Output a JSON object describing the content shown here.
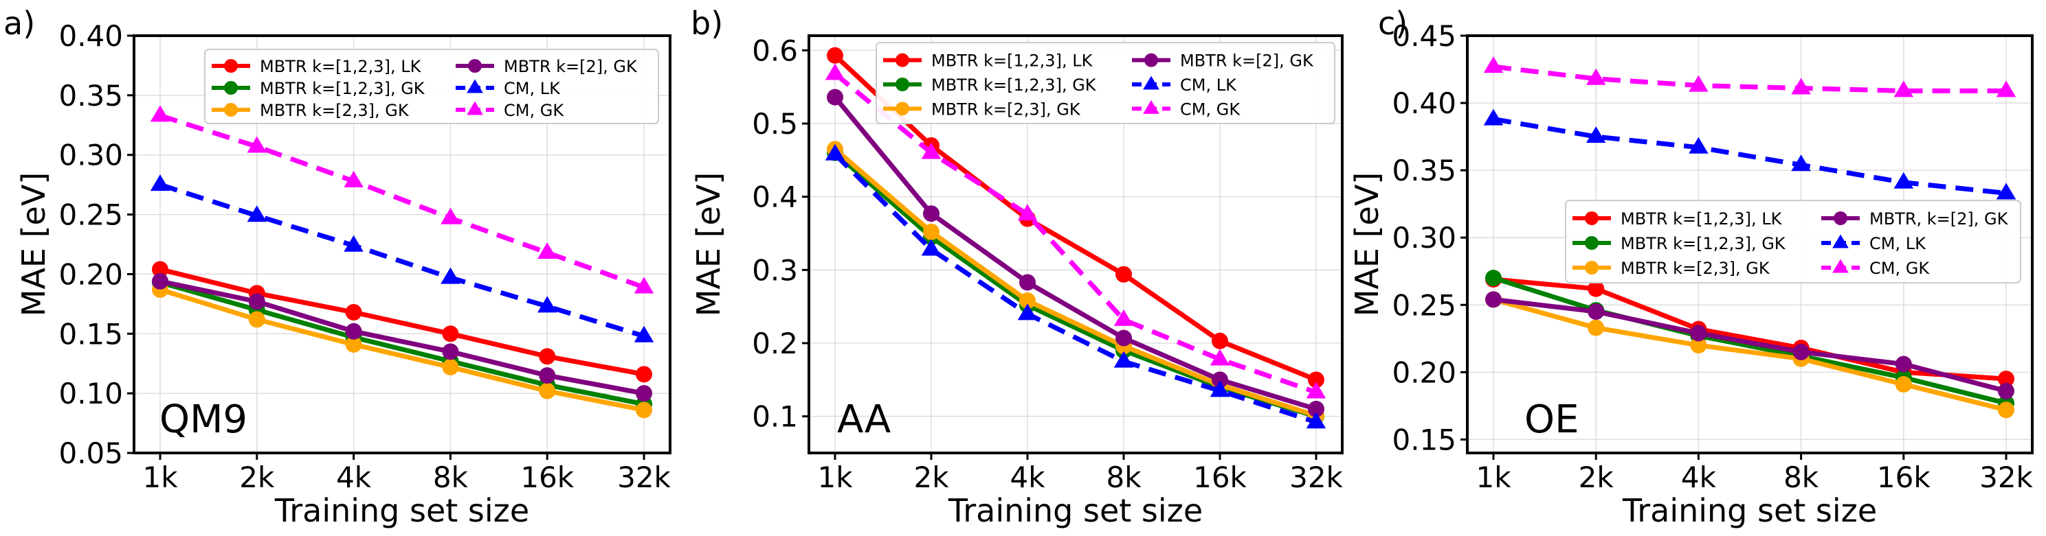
{
  "chart_data": [
    {
      "type": "line",
      "panel_label": "a)",
      "dataset_label": "QM9",
      "xlabel": "Training set size",
      "ylabel": "MAE [eV]",
      "categories": [
        "1k",
        "2k",
        "4k",
        "8k",
        "16k",
        "32k"
      ],
      "ylim": [
        0.05,
        0.4
      ],
      "yticks": [
        "0.05",
        "0.10",
        "0.15",
        "0.20",
        "0.25",
        "0.30",
        "0.35",
        "0.40"
      ],
      "grid": true,
      "legend": "top",
      "series": [
        {
          "name": "MBTR k=[1,2,3], LK",
          "color": "#ff0000",
          "marker": "circle",
          "dash": false,
          "values": [
            0.204,
            0.184,
            0.168,
            0.15,
            0.131,
            0.116
          ]
        },
        {
          "name": "MBTR k=[1,2,3], GK",
          "color": "#008000",
          "marker": "circle",
          "dash": false,
          "values": [
            0.193,
            0.17,
            0.147,
            0.127,
            0.107,
            0.091
          ]
        },
        {
          "name": "MBTR k=[2,3], GK",
          "color": "#ffa500",
          "marker": "circle",
          "dash": false,
          "values": [
            0.187,
            0.162,
            0.141,
            0.122,
            0.102,
            0.086
          ]
        },
        {
          "name": "MBTR k=[2], GK",
          "color": "#800080",
          "marker": "circle",
          "dash": false,
          "values": [
            0.194,
            0.177,
            0.152,
            0.135,
            0.115,
            0.1
          ]
        },
        {
          "name": "CM, LK",
          "color": "#0000ff",
          "marker": "triangle",
          "dash": true,
          "values": [
            0.275,
            0.249,
            0.224,
            0.197,
            0.173,
            0.148
          ]
        },
        {
          "name": "CM, GK",
          "color": "#ff00ff",
          "marker": "triangle",
          "dash": true,
          "values": [
            0.333,
            0.307,
            0.278,
            0.247,
            0.218,
            0.189
          ]
        }
      ]
    },
    {
      "type": "line",
      "panel_label": "b)",
      "dataset_label": "AA",
      "xlabel": "Training set size",
      "ylabel": "MAE [eV]",
      "categories": [
        "1k",
        "2k",
        "4k",
        "8k",
        "16k",
        "32k"
      ],
      "ylim": [
        0.05,
        0.62
      ],
      "yticks": [
        "0.1",
        "0.2",
        "0.3",
        "0.4",
        "0.5",
        "0.6"
      ],
      "ytick_values": [
        0.1,
        0.2,
        0.3,
        0.4,
        0.5,
        0.6
      ],
      "grid": true,
      "legend": "top",
      "series": [
        {
          "name": "MBTR k=[1,2,3], LK",
          "color": "#ff0000",
          "marker": "circle",
          "dash": false,
          "values": [
            0.593,
            0.47,
            0.37,
            0.294,
            0.203,
            0.15
          ]
        },
        {
          "name": "MBTR k=[1,2,3], GK",
          "color": "#008000",
          "marker": "circle",
          "dash": false,
          "values": [
            0.46,
            0.345,
            0.252,
            0.19,
            0.14,
            0.1
          ]
        },
        {
          "name": "MBTR k=[2,3], GK",
          "color": "#ffa500",
          "marker": "circle",
          "dash": false,
          "values": [
            0.465,
            0.352,
            0.258,
            0.196,
            0.143,
            0.101
          ]
        },
        {
          "name": "MBTR k=[2], GK",
          "color": "#800080",
          "marker": "circle",
          "dash": false,
          "values": [
            0.536,
            0.377,
            0.283,
            0.207,
            0.15,
            0.11
          ]
        },
        {
          "name": "CM, LK",
          "color": "#0000ff",
          "marker": "triangle",
          "dash": true,
          "values": [
            0.458,
            0.328,
            0.24,
            0.175,
            0.135,
            0.092
          ]
        },
        {
          "name": "CM, GK",
          "color": "#ff00ff",
          "marker": "triangle",
          "dash": true,
          "values": [
            0.568,
            0.46,
            0.376,
            0.232,
            0.178,
            0.133
          ]
        }
      ]
    },
    {
      "type": "line",
      "panel_label": "c)",
      "dataset_label": "OE",
      "xlabel": "Training set size",
      "ylabel": "MAE [eV]",
      "categories": [
        "1k",
        "2k",
        "4k",
        "8k",
        "16k",
        "32k"
      ],
      "ylim": [
        0.14,
        0.45
      ],
      "yticks": [
        "0.15",
        "0.20",
        "0.25",
        "0.30",
        "0.35",
        "0.40",
        "0.45"
      ],
      "ytick_values": [
        0.15,
        0.2,
        0.25,
        0.3,
        0.35,
        0.4,
        0.45
      ],
      "grid": true,
      "legend": "center",
      "series": [
        {
          "name": "MBTR k=[1,2,3], LK",
          "color": "#ff0000",
          "marker": "circle",
          "dash": false,
          "values": [
            0.269,
            0.262,
            0.232,
            0.218,
            0.2,
            0.195
          ]
        },
        {
          "name": "MBTR k=[1,2,3], GK",
          "color": "#008000",
          "marker": "circle",
          "dash": false,
          "values": [
            0.27,
            0.246,
            0.227,
            0.212,
            0.196,
            0.177
          ]
        },
        {
          "name": "MBTR k=[2,3], GK",
          "color": "#ffa500",
          "marker": "circle",
          "dash": false,
          "values": [
            0.254,
            0.233,
            0.22,
            0.21,
            0.191,
            0.172
          ]
        },
        {
          "name": "MBTR, k=[2], GK",
          "color": "#800080",
          "marker": "circle",
          "dash": false,
          "values": [
            0.254,
            0.245,
            0.229,
            0.215,
            0.206,
            0.186
          ]
        },
        {
          "name": "CM, LK",
          "color": "#0000ff",
          "marker": "triangle",
          "dash": true,
          "values": [
            0.388,
            0.375,
            0.367,
            0.354,
            0.341,
            0.333
          ]
        },
        {
          "name": "CM, GK",
          "color": "#ff00ff",
          "marker": "triangle",
          "dash": true,
          "values": [
            0.427,
            0.418,
            0.413,
            0.411,
            0.409,
            0.409
          ]
        }
      ]
    }
  ]
}
